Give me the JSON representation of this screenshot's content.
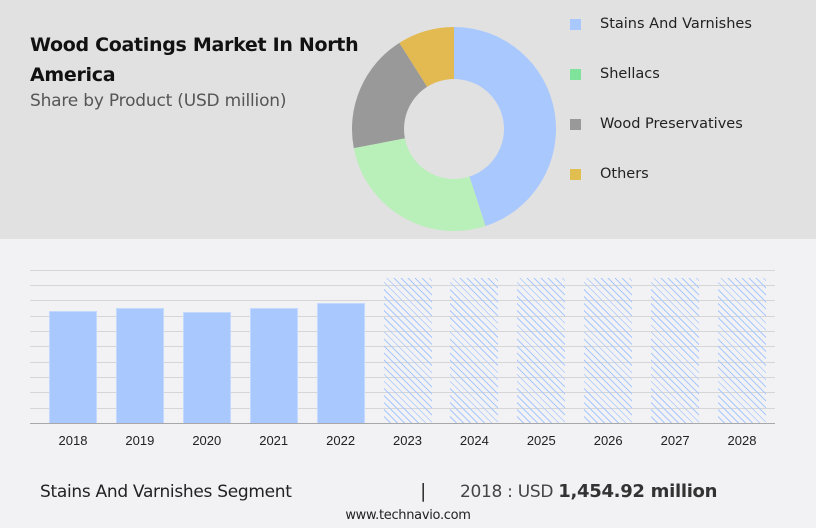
{
  "header": {
    "title": "Wood Coatings Market In North America",
    "subtitle": "Share by Product (USD million)"
  },
  "legend": [
    {
      "label": "Stains And Varnishes",
      "color": "#a8c8fe"
    },
    {
      "label": "Shellacs",
      "color": "#7fe39b"
    },
    {
      "label": "Wood Preservatives",
      "color": "#999999"
    },
    {
      "label": "Others",
      "color": "#e0bf50"
    }
  ],
  "footer": {
    "segment": "Stains And Varnishes Segment",
    "separator": "|",
    "year_prefix": "2018 : USD ",
    "value": "1,454.92 million",
    "url": "www.technavio.com"
  },
  "chart_data": [
    {
      "type": "pie",
      "title": "Wood Coatings Market In North America",
      "subtitle": "Share by Product (USD million)",
      "donut": true,
      "categories": [
        "Stains And Varnishes",
        "Shellacs",
        "Wood Preservatives",
        "Others"
      ],
      "values": [
        45,
        27,
        19,
        9
      ],
      "colors": [
        "#a8c8fe",
        "#b9efb9",
        "#999999",
        "#e3b951"
      ],
      "legend_position": "right"
    },
    {
      "type": "bar",
      "title": "Stains And Varnishes Segment",
      "categories": [
        "2018",
        "2019",
        "2020",
        "2021",
        "2022",
        "2023",
        "2024",
        "2025",
        "2026",
        "2027",
        "2028"
      ],
      "values": [
        1454.92,
        1490,
        1440,
        1490,
        1560,
        null,
        null,
        null,
        null,
        null,
        null
      ],
      "forecast_years": [
        "2023",
        "2024",
        "2025",
        "2026",
        "2027",
        "2028"
      ],
      "annotation": "2018 : USD 1,454.92 million",
      "xlabel": "",
      "ylabel": "",
      "grid": true,
      "y_axis_labels_shown": false,
      "bar_color": "#a8c8fe",
      "forecast_style": "hatched"
    }
  ]
}
